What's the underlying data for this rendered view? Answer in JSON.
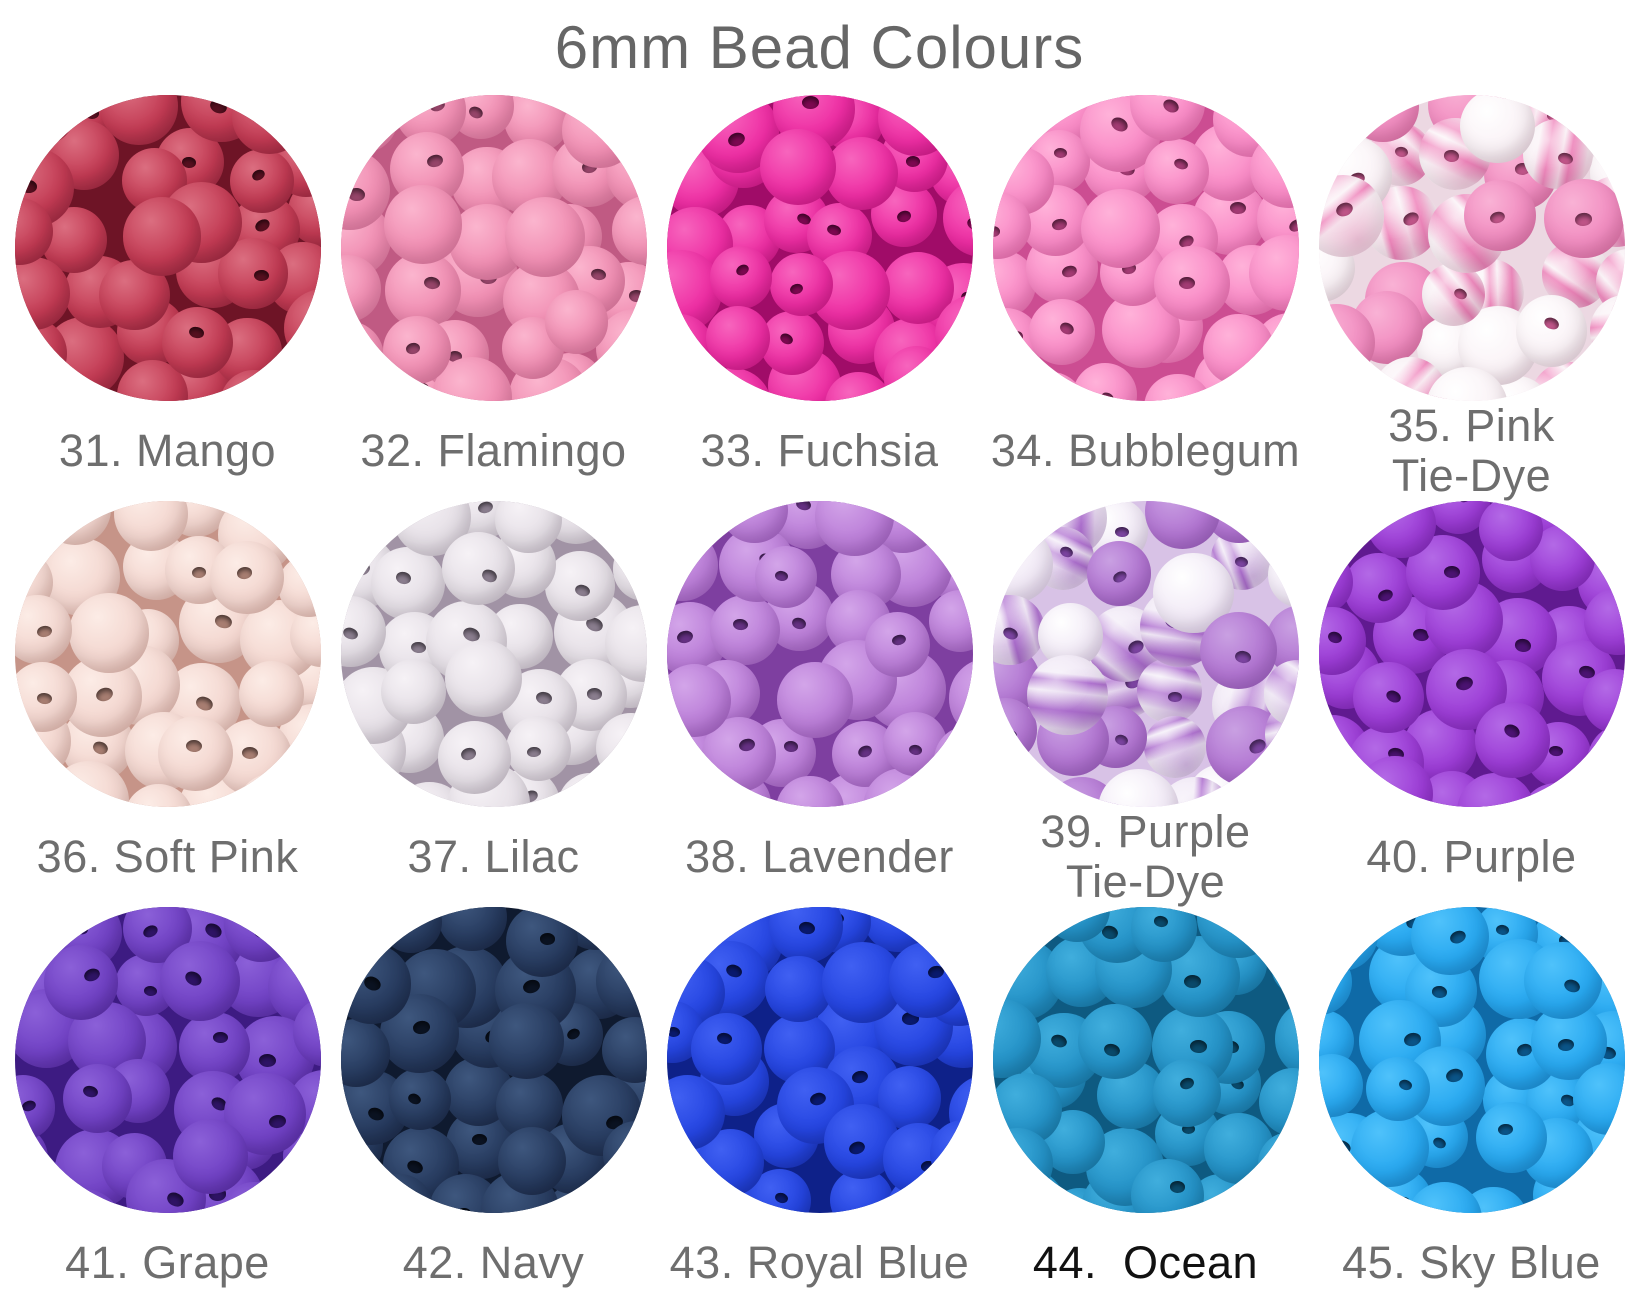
{
  "title": "6mm Bead Colours",
  "text_colors": {
    "title": "#666666",
    "label": "#6e6e6e"
  },
  "swatches": [
    {
      "number": "31",
      "name": "Mango",
      "label": "31. Mango",
      "type": "solid",
      "colors": {
        "light": "#db6e80",
        "base": "#c23a53",
        "dark": "#8e2038",
        "deep": "#6e1426",
        "hole": "#571020"
      }
    },
    {
      "number": "32",
      "name": "Flamingo",
      "label": "32. Flamingo",
      "type": "solid",
      "colors": {
        "light": "#fbb5ce",
        "base": "#f08db2",
        "dark": "#d76d97",
        "deep": "#c05a83",
        "hole": "#97456a"
      }
    },
    {
      "number": "33",
      "name": "Fuchsia",
      "label": "33. Fuchsia",
      "type": "solid",
      "colors": {
        "light": "#f765bd",
        "base": "#ee2da3",
        "dark": "#c30f7e",
        "deep": "#a00c68",
        "hole": "#7d0951"
      }
    },
    {
      "number": "34",
      "name": "Bubblegum",
      "label": "34. Bubblegum",
      "type": "solid",
      "colors": {
        "light": "#ffb2d9",
        "base": "#f98ac6",
        "dark": "#e35fa5",
        "deep": "#cc4d92",
        "hole": "#a43b74"
      }
    },
    {
      "number": "35",
      "name": "Pink Tie-Dye",
      "label": "35. Pink\nTie-Dye",
      "type": "marble",
      "colors": {
        "white": "#faf2f6",
        "wdark": "#e2c6d4",
        "light": "#f9b2d5",
        "accent": "#f18cc0",
        "dark": "#d8659d",
        "deep": "#ecd8e2",
        "hole": "#c05589"
      }
    },
    {
      "number": "36",
      "name": "Soft Pink",
      "label": "36. Soft Pink",
      "type": "solid",
      "colors": {
        "light": "#fcece6",
        "base": "#f3d6cf",
        "dark": "#d8a79c",
        "deep": "#c69488",
        "hole": "#a87e72"
      }
    },
    {
      "number": "37",
      "name": "Lilac",
      "label": "37. Lilac",
      "type": "solid",
      "colors": {
        "light": "#f6f2f6",
        "base": "#e5dfe6",
        "dark": "#bfb3c1",
        "deep": "#a193a5",
        "hole": "#8b7e8f"
      }
    },
    {
      "number": "38",
      "name": "Lavender",
      "label": "38. Lavender",
      "type": "solid",
      "colors": {
        "light": "#d3a5e9",
        "base": "#bb7ed8",
        "dark": "#9853b9",
        "deep": "#7e3fa0",
        "hole": "#663184"
      }
    },
    {
      "number": "39",
      "name": "Purple Tie-Dye",
      "label": "39. Purple\nTie-Dye",
      "type": "marble",
      "colors": {
        "white": "#f1e9f6",
        "wdark": "#d1bcdd",
        "light": "#c9a0e2",
        "accent": "#b275d2",
        "dark": "#9354b7",
        "deep": "#d8c2e6",
        "hole": "#7c44a1"
      }
    },
    {
      "number": "40",
      "name": "Purple",
      "label": "40. Purple",
      "type": "solid",
      "colors": {
        "light": "#b369e6",
        "base": "#9c3cd6",
        "dark": "#7a21b1",
        "deep": "#601a90",
        "hole": "#4c1373"
      }
    },
    {
      "number": "41",
      "name": "Grape",
      "label": "41. Grape",
      "type": "solid",
      "colors": {
        "light": "#8b60d8",
        "base": "#7041c4",
        "dark": "#4f249b",
        "deep": "#3d1b82",
        "hole": "#2f1466"
      }
    },
    {
      "number": "42",
      "name": "Navy",
      "label": "42. Navy",
      "type": "solid",
      "colors": {
        "light": "#3e577e",
        "base": "#273b5f",
        "dark": "#162340",
        "deep": "#0f1a2f",
        "hole": "#0b1322"
      }
    },
    {
      "number": "43",
      "name": "Royal Blue",
      "label": "43. Royal Blue",
      "type": "solid",
      "colors": {
        "light": "#4060f2",
        "base": "#2545e1",
        "dark": "#142ba9",
        "deep": "#0e2189",
        "hole": "#0a1a6e"
      }
    },
    {
      "number": "44",
      "name": "Ocean",
      "label": "44.  Ocean",
      "label_color": "#111111",
      "type": "solid",
      "colors": {
        "light": "#40aedd",
        "base": "#2492c7",
        "dark": "#13709e",
        "deep": "#0e5a81",
        "hole": "#0a4a6b"
      }
    },
    {
      "number": "45",
      "name": "Sky Blue",
      "label": "45. Sky Blue",
      "type": "solid",
      "colors": {
        "light": "#4fc2fb",
        "base": "#28a8f0",
        "dark": "#1480c7",
        "deep": "#0f6aa7",
        "hole": "#0b5589"
      }
    }
  ]
}
